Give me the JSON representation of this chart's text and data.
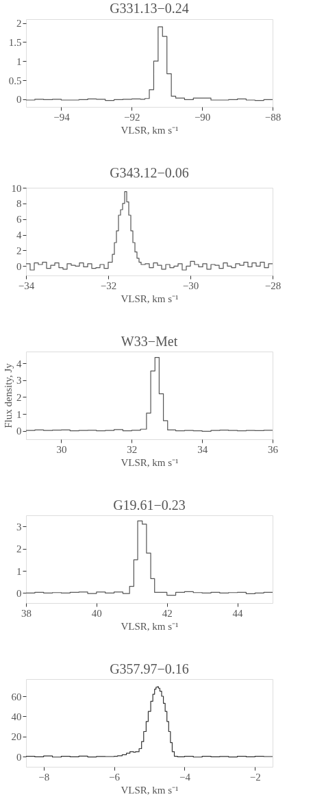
{
  "chart_data": [
    {
      "type": "step",
      "title": "G331.13−0.24",
      "xlabel": "VLSR, km s⁻¹",
      "xlim": [
        -95,
        -88
      ],
      "xticks": [
        -94,
        -92,
        -90,
        -88
      ],
      "ylim": [
        -0.2,
        2.1
      ],
      "yticks": [
        0,
        0.5,
        1,
        1.5,
        2
      ],
      "grid": false,
      "series": [
        {
          "color": "#555555",
          "x": [
            -95,
            -94.75,
            -94.5,
            -94.25,
            -94,
            -93.75,
            -93.5,
            -93.25,
            -93,
            -92.75,
            -92.5,
            -92.25,
            -92,
            -91.75,
            -91.625,
            -91.5,
            -91.375,
            -91.25,
            -91.125,
            -91.0,
            -90.875,
            -90.75,
            -90.5,
            -90.25,
            -90,
            -89.75,
            -89.5,
            -89.25,
            -89,
            -88.75,
            -88.5,
            -88.25,
            -88
          ],
          "values": [
            -0.02,
            0.0,
            -0.01,
            0.0,
            -0.02,
            -0.02,
            -0.01,
            0.01,
            0.0,
            -0.03,
            -0.01,
            0.0,
            0.01,
            0.0,
            0.02,
            0.25,
            1.0,
            1.9,
            1.65,
            0.67,
            0.08,
            0.03,
            -0.01,
            0.03,
            0.03,
            -0.02,
            -0.02,
            -0.01,
            0.01,
            -0.02,
            -0.03,
            -0.01,
            -0.01
          ]
        }
      ]
    },
    {
      "type": "step",
      "title": "G343.12−0.06",
      "xlabel": "VLSR, km s⁻¹",
      "xlim": [
        -34,
        -28
      ],
      "xticks": [
        -34,
        -32,
        -30,
        -28
      ],
      "ylim": [
        -1.2,
        10
      ],
      "yticks": [
        0,
        2,
        4,
        6,
        8,
        10
      ],
      "grid": false,
      "series": [
        {
          "color": "#555555",
          "x": [
            -34,
            -33.9,
            -33.8,
            -33.7,
            -33.6,
            -33.5,
            -33.4,
            -33.3,
            -33.2,
            -33.1,
            -33.0,
            -32.9,
            -32.8,
            -32.7,
            -32.6,
            -32.5,
            -32.4,
            -32.3,
            -32.2,
            -32.1,
            -32.0,
            -31.95,
            -31.9,
            -31.85,
            -31.8,
            -31.75,
            -31.7,
            -31.65,
            -31.6,
            -31.55,
            -31.5,
            -31.45,
            -31.4,
            -31.35,
            -31.3,
            -31.25,
            -31.2,
            -31.1,
            -31.0,
            -30.9,
            -30.8,
            -30.7,
            -30.6,
            -30.5,
            -30.4,
            -30.3,
            -30.2,
            -30.1,
            -30.0,
            -29.9,
            -29.8,
            -29.7,
            -29.6,
            -29.5,
            -29.4,
            -29.3,
            -29.2,
            -29.1,
            -29.0,
            -28.9,
            -28.8,
            -28.7,
            -28.6,
            -28.5,
            -28.4,
            -28.3,
            -28.2,
            -28.1,
            -28
          ],
          "values": [
            0.3,
            -0.5,
            0.4,
            0.2,
            0.5,
            -0.3,
            0.1,
            0.4,
            -0.2,
            -0.4,
            0.3,
            0.1,
            0.0,
            0.4,
            -0.1,
            0.3,
            -0.3,
            -0.2,
            0.2,
            -0.3,
            0.5,
            0.5,
            1.5,
            3.0,
            4.5,
            6.5,
            7.2,
            8.0,
            9.5,
            8.2,
            6.5,
            4.5,
            3.0,
            1.8,
            1.0,
            0.5,
            0.2,
            0.3,
            -0.2,
            0.4,
            0.1,
            -0.4,
            0.2,
            -0.2,
            0.0,
            0.3,
            -0.5,
            0.0,
            0.6,
            0.2,
            -0.1,
            0.3,
            -0.4,
            0.2,
            0.1,
            -0.3,
            0.4,
            0.0,
            -0.2,
            0.3,
            0.1,
            0.5,
            -0.1,
            0.4,
            0.0,
            0.5,
            -0.2,
            0.3,
            0.3
          ]
        }
      ]
    },
    {
      "type": "step",
      "title": "W33−Met",
      "xlabel": "VLSR, km s⁻¹",
      "ylabel": "Flux density, Jy",
      "xlim": [
        29,
        36
      ],
      "xticks": [
        30,
        32,
        34,
        36
      ],
      "ylim": [
        -0.5,
        4.7
      ],
      "yticks": [
        0,
        1,
        2,
        3,
        4
      ],
      "grid": false,
      "series": [
        {
          "color": "#555555",
          "x": [
            29,
            29.25,
            29.5,
            29.75,
            30,
            30.25,
            30.5,
            30.75,
            31,
            31.25,
            31.5,
            31.75,
            32,
            32.25,
            32.42,
            32.54,
            32.66,
            32.78,
            32.9,
            33.02,
            33.25,
            33.5,
            33.75,
            34,
            34.25,
            34.5,
            34.75,
            35,
            35.25,
            35.5,
            35.75,
            36
          ],
          "values": [
            0.02,
            0.05,
            0.02,
            0.04,
            0.05,
            0.0,
            0.02,
            0.03,
            0.0,
            0.02,
            0.07,
            0.0,
            0.03,
            0.1,
            1.05,
            3.55,
            4.35,
            2.2,
            0.6,
            0.05,
            0.0,
            0.02,
            0.0,
            -0.03,
            0.02,
            0.04,
            0.02,
            0.0,
            0.02,
            0.01,
            0.03,
            0.03
          ]
        }
      ]
    },
    {
      "type": "step",
      "title": "G19.61−0.23",
      "xlabel": "VLSR, km s⁻¹",
      "xlim": [
        38,
        45
      ],
      "xticks": [
        38,
        40,
        42,
        44
      ],
      "ylim": [
        -0.45,
        3.5
      ],
      "yticks": [
        0,
        1,
        2,
        3
      ],
      "grid": false,
      "series": [
        {
          "color": "#555555",
          "x": [
            38,
            38.25,
            38.5,
            38.75,
            39,
            39.25,
            39.5,
            39.75,
            40,
            40.25,
            40.5,
            40.75,
            40.94,
            41.06,
            41.17,
            41.3,
            41.42,
            41.54,
            41.65,
            42.0,
            42.25,
            42.5,
            42.75,
            43,
            43.25,
            43.5,
            43.75,
            44,
            44.25,
            44.5,
            44.75,
            45
          ],
          "values": [
            0.0,
            0.03,
            0.0,
            0.02,
            0.0,
            0.03,
            0.05,
            -0.02,
            0.05,
            0.0,
            0.05,
            -0.02,
            0.3,
            1.5,
            3.25,
            3.1,
            1.8,
            0.65,
            0.03,
            -0.1,
            0.03,
            0.06,
            0.02,
            0.0,
            0.03,
            0.0,
            0.02,
            0.03,
            -0.03,
            0.0,
            0.03,
            0.03
          ]
        }
      ]
    },
    {
      "type": "step",
      "title": "G357.97−0.16",
      "xlabel": "VLSR, km s⁻¹",
      "xlim": [
        -8.5,
        -1.5
      ],
      "xticks": [
        -8,
        -6,
        -4,
        -2
      ],
      "ylim": [
        -10,
        77
      ],
      "yticks": [
        0,
        20,
        40,
        60
      ],
      "grid": false,
      "series": [
        {
          "color": "#333333",
          "x": [
            -8.5,
            -8.25,
            -8.0,
            -7.75,
            -7.5,
            -7.25,
            -7.0,
            -6.75,
            -6.5,
            -6.25,
            -6.0,
            -5.9,
            -5.77,
            -5.65,
            -5.55,
            -5.45,
            -5.39,
            -5.29,
            -5.22,
            -5.16,
            -5.09,
            -5.03,
            -4.96,
            -4.9,
            -4.85,
            -4.81,
            -4.77,
            -4.74,
            -4.7,
            -4.65,
            -4.6,
            -4.55,
            -4.5,
            -4.45,
            -4.4,
            -4.35,
            -4.29,
            -4.2,
            -4.0,
            -3.75,
            -3.5,
            -3.25,
            -3.0,
            -2.75,
            -2.5,
            -2.25,
            -2.0,
            -1.75,
            -1.5
          ],
          "values": [
            0.5,
            0.0,
            0.8,
            -0.3,
            0.4,
            0.0,
            0.6,
            -0.2,
            0.3,
            0.2,
            0.5,
            1.0,
            2.0,
            3.5,
            5.0,
            4.5,
            5.0,
            8.0,
            15.0,
            25.0,
            35.0,
            45.0,
            55.0,
            62.0,
            67.0,
            69.0,
            69.5,
            68.0,
            65.0,
            60.0,
            53.0,
            45.0,
            35.0,
            25.0,
            14.0,
            5.0,
            0.5,
            0.0,
            0.4,
            -0.3,
            0.5,
            0.0,
            0.3,
            -0.2,
            0.5,
            0.0,
            0.4,
            0.2,
            0.3
          ]
        }
      ]
    }
  ]
}
